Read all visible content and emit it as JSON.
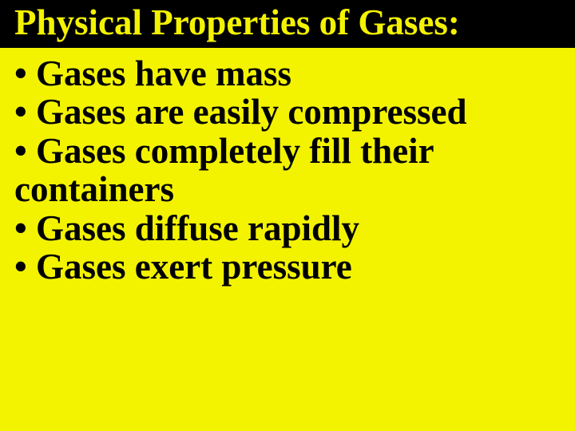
{
  "slide": {
    "title": "Physical Properties of Gases:",
    "title_bg_color": "#000000",
    "title_text_color": "#f3f300",
    "content_bg_color": "#f3f300",
    "content_text_color": "#000000",
    "title_fontsize": 45,
    "body_fontsize": 45,
    "font_family": "Times New Roman",
    "bullets": [
      "• Gases have mass",
      "• Gases are easily compressed",
      "• Gases completely fill their containers",
      "• Gases diffuse rapidly",
      "• Gases exert pressure"
    ]
  }
}
